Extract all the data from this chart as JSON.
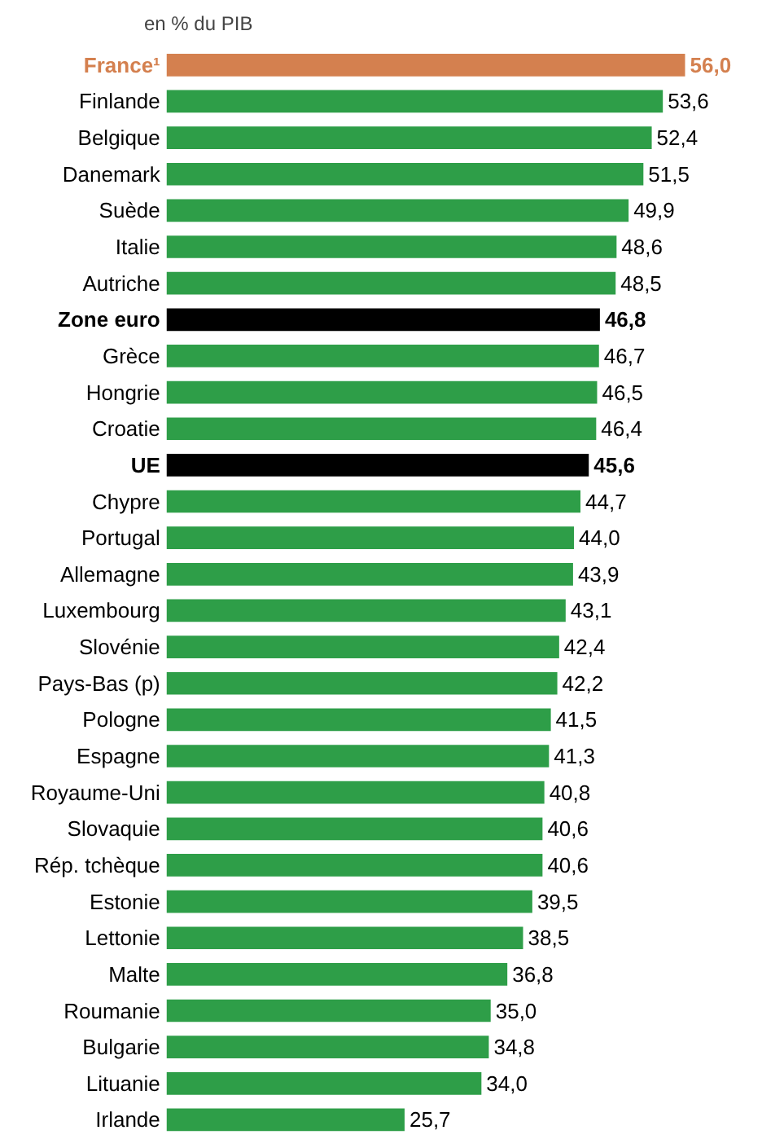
{
  "chart_data": {
    "type": "bar",
    "orientation": "horizontal",
    "subtitle": "en % du PIB",
    "data_labels": true,
    "categories": [
      "France¹",
      "Finlande",
      "Belgique",
      "Danemark",
      "Suède",
      "Italie",
      "Autriche",
      "Zone euro",
      "Grèce",
      "Hongrie",
      "Croatie",
      "UE",
      "Chypre",
      "Portugal",
      "Allemagne",
      "Luxembourg",
      "Slovénie",
      "Pays-Bas (p)",
      "Pologne",
      "Espagne",
      "Royaume-Uni",
      "Slovaquie",
      "Rép. tchèque",
      "Estonie",
      "Lettonie",
      "Malte",
      "Roumanie",
      "Bulgarie",
      "Lituanie",
      "Irlande"
    ],
    "values": [
      56.0,
      53.6,
      52.4,
      51.5,
      49.9,
      48.6,
      48.5,
      46.8,
      46.7,
      46.5,
      46.4,
      45.6,
      44.7,
      44.0,
      43.9,
      43.1,
      42.4,
      42.2,
      41.5,
      41.3,
      40.8,
      40.6,
      40.6,
      39.5,
      38.5,
      36.8,
      35.0,
      34.8,
      34.0,
      25.7
    ],
    "value_labels": [
      "56,0",
      "53,6",
      "52,4",
      "51,5",
      "49,9",
      "48,6",
      "48,5",
      "46,8",
      "46,7",
      "46,5",
      "46,4",
      "45,6",
      "44,7",
      "44,0",
      "43,9",
      "43,1",
      "42,4",
      "42,2",
      "41,5",
      "41,3",
      "40,8",
      "40,6",
      "40,6",
      "39,5",
      "38,5",
      "36,8",
      "35,0",
      "34,8",
      "34,0",
      "25,7"
    ],
    "colors": [
      "#d4804f",
      "#2e9e48",
      "#2e9e48",
      "#2e9e48",
      "#2e9e48",
      "#2e9e48",
      "#2e9e48",
      "#000000",
      "#2e9e48",
      "#2e9e48",
      "#2e9e48",
      "#000000",
      "#2e9e48",
      "#2e9e48",
      "#2e9e48",
      "#2e9e48",
      "#2e9e48",
      "#2e9e48",
      "#2e9e48",
      "#2e9e48",
      "#2e9e48",
      "#2e9e48",
      "#2e9e48",
      "#2e9e48",
      "#2e9e48",
      "#2e9e48",
      "#2e9e48",
      "#2e9e48",
      "#2e9e48",
      "#2e9e48"
    ]
  }
}
